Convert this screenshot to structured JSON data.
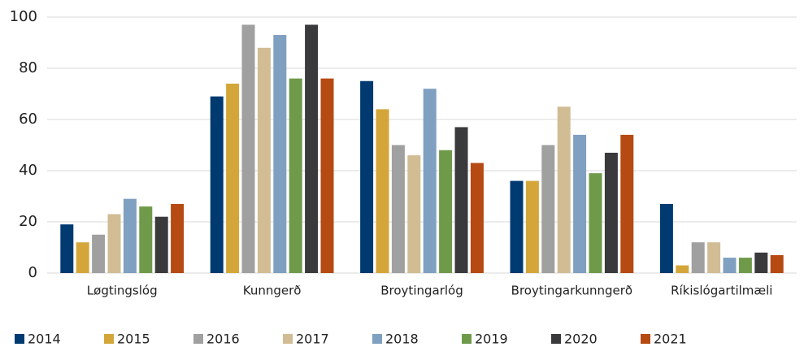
{
  "chart_data": {
    "type": "bar",
    "categories": [
      "Løgtingslóg",
      "Kunngerð",
      "Broytingarlóg",
      "Broytingarkunngerð",
      "Ríkislógartilmæli"
    ],
    "series": [
      {
        "name": "2014",
        "color": "#003a70",
        "values": [
          19,
          69,
          75,
          36,
          27
        ]
      },
      {
        "name": "2015",
        "color": "#d4a63a",
        "values": [
          12,
          74,
          64,
          36,
          3
        ]
      },
      {
        "name": "2016",
        "color": "#a0a0a0",
        "values": [
          15,
          97,
          50,
          50,
          12
        ]
      },
      {
        "name": "2017",
        "color": "#d1bc94",
        "values": [
          23,
          88,
          46,
          65,
          12
        ]
      },
      {
        "name": "2018",
        "color": "#7fa0c0",
        "values": [
          29,
          93,
          72,
          54,
          6
        ]
      },
      {
        "name": "2019",
        "color": "#6f9a4a",
        "values": [
          26,
          76,
          48,
          39,
          6
        ]
      },
      {
        "name": "2020",
        "color": "#3a3a3c",
        "values": [
          22,
          97,
          57,
          47,
          8
        ]
      },
      {
        "name": "2021",
        "color": "#b54a12",
        "values": [
          27,
          76,
          43,
          54,
          7
        ]
      }
    ],
    "ylim": [
      0,
      100
    ],
    "yticks": [
      0,
      20,
      40,
      60,
      80,
      100
    ],
    "grid": true,
    "legend": "bottom"
  }
}
